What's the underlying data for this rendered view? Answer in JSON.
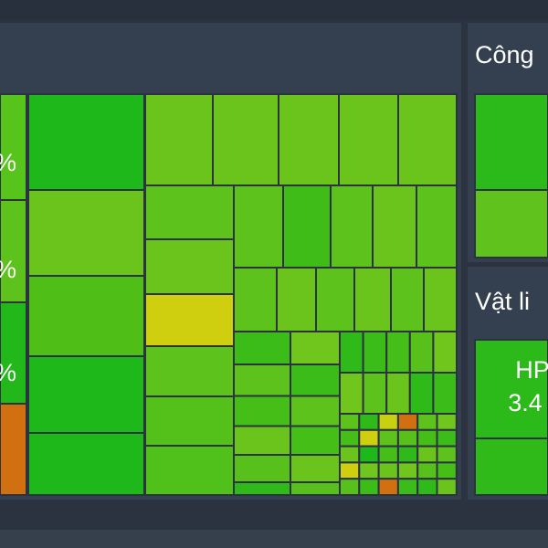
{
  "panels": [
    {
      "title": "Công"
    },
    {
      "title": "Vật li",
      "tile": {
        "symbol": "HP",
        "change": "3.4"
      }
    }
  ],
  "left_labels": [
    "%",
    "%",
    "%"
  ]
}
